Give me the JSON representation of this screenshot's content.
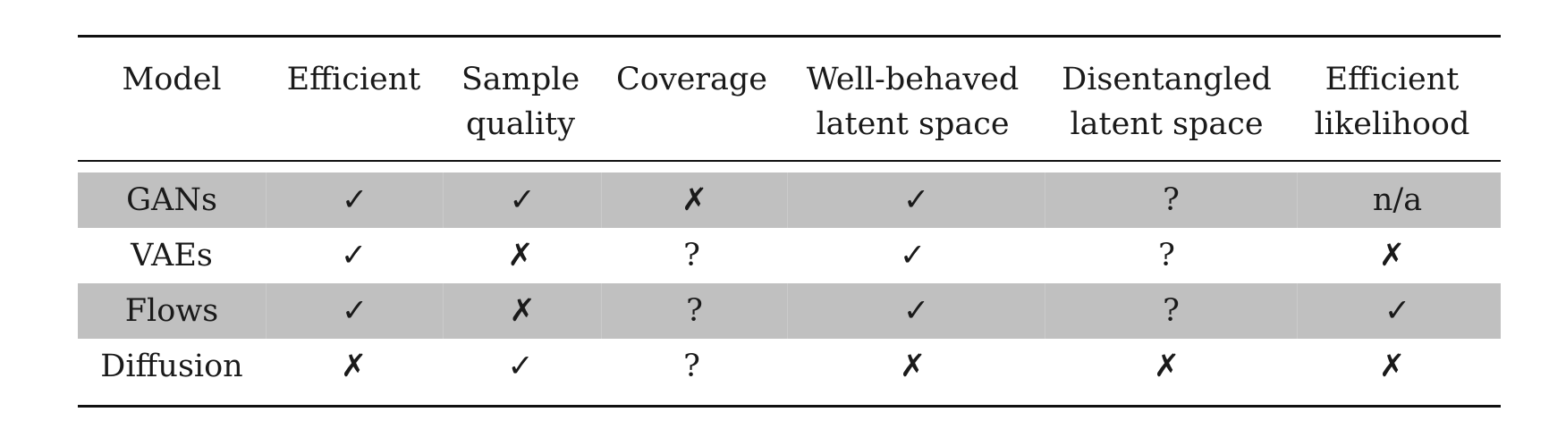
{
  "table": {
    "headers": [
      "Model",
      "Efficient",
      "Sample\nquality",
      "Coverage",
      "Well-behaved\nlatent space",
      "Disentangled\nlatent space",
      "Efficient\nlikelihood"
    ],
    "rows": [
      {
        "model": "GANs",
        "cells": [
          "✓",
          "✓",
          "✗",
          "✓",
          "?",
          "n/a"
        ]
      },
      {
        "model": "VAEs",
        "cells": [
          "✓",
          "✗",
          "?",
          "✓",
          "?",
          "✗"
        ]
      },
      {
        "model": "Flows",
        "cells": [
          "✓",
          "✗",
          "?",
          "✓",
          "?",
          "✓"
        ]
      },
      {
        "model": "Diffusion",
        "cells": [
          "✗",
          "✓",
          "?",
          "✗",
          "✗",
          "✗"
        ]
      }
    ],
    "colors": {
      "row_shade": "#c0c0c0",
      "rule": "#111111"
    }
  }
}
